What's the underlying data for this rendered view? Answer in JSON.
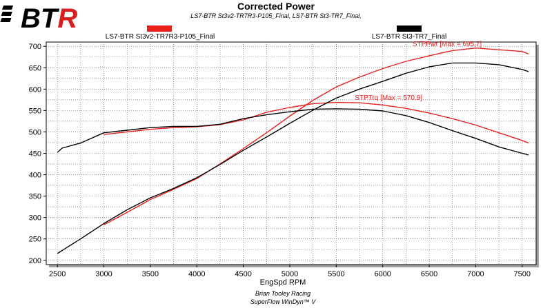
{
  "logo": {
    "text": "BTR",
    "accent": "#d81e1e"
  },
  "chart_data": {
    "type": "line",
    "title": "Corrected Power",
    "subtitle": "LS7-BTR St3v2-TR7R3-P105_Final, LS7-BTR St3-TR7_Final,",
    "xlabel": "EngSpd RPM",
    "ylabel": "",
    "xlim": [
      2380,
      7650
    ],
    "ylim": [
      190,
      710
    ],
    "xticks": [
      2500,
      3000,
      3500,
      4000,
      4500,
      5000,
      5500,
      6000,
      6500,
      7000,
      7500
    ],
    "yticks": [
      200,
      250,
      300,
      350,
      400,
      450,
      500,
      550,
      600,
      650,
      700
    ],
    "grid": true,
    "legend_position": "top",
    "legend": [
      {
        "name": "LS7-BTR St3v2-TR7R3-P105_Final",
        "color": "#e8201c"
      },
      {
        "name": "LS7-BTR St3-TR7_Final",
        "color": "#000000"
      }
    ],
    "series": [
      {
        "name": "LS7-BTR St3v2-TR7R3-P105_Final",
        "metric": "STPPwr",
        "color": "#e8201c",
        "x": [
          3000,
          3250,
          3500,
          3750,
          4000,
          4250,
          4500,
          4750,
          5000,
          5250,
          5500,
          5750,
          6000,
          6250,
          6500,
          6750,
          7000,
          7250,
          7500,
          7570
        ],
        "y": [
          283,
          312,
          342,
          366,
          391,
          425,
          461,
          498,
          537,
          574,
          605,
          628,
          648,
          665,
          678,
          690,
          696,
          692,
          688,
          682
        ]
      },
      {
        "name": "LS7-BTR St3v2-TR7R3-P105_Final",
        "metric": "STPTrq",
        "color": "#e8201c",
        "x": [
          3000,
          3250,
          3500,
          3750,
          4000,
          4250,
          4500,
          4750,
          5000,
          5250,
          5500,
          5750,
          6000,
          6250,
          6500,
          6750,
          7000,
          7250,
          7500,
          7570
        ],
        "y": [
          494,
          500,
          506,
          510,
          512,
          517,
          528,
          546,
          557,
          566,
          569,
          568,
          563,
          555,
          544,
          531,
          516,
          498,
          480,
          474
        ]
      },
      {
        "name": "LS7-BTR St3-TR7_Final",
        "metric": "STPPwr",
        "color": "#000000",
        "x": [
          2500,
          2750,
          3000,
          3250,
          3500,
          3750,
          4000,
          4250,
          4500,
          4750,
          5000,
          5250,
          5500,
          5750,
          6000,
          6250,
          6500,
          6750,
          7000,
          7250,
          7500,
          7570
        ],
        "y": [
          216,
          250,
          286,
          318,
          346,
          368,
          393,
          424,
          457,
          488,
          520,
          551,
          579,
          600,
          618,
          637,
          652,
          661,
          661,
          657,
          646,
          641
        ]
      },
      {
        "name": "LS7-BTR St3-TR7_Final",
        "metric": "STPTrq",
        "color": "#000000",
        "x": [
          2500,
          2550,
          2750,
          3000,
          3250,
          3500,
          3750,
          4000,
          4250,
          4500,
          4750,
          5000,
          5250,
          5500,
          5750,
          6000,
          6250,
          6500,
          6750,
          7000,
          7250,
          7500,
          7570
        ],
        "y": [
          452,
          462,
          474,
          498,
          504,
          510,
          513,
          513,
          518,
          531,
          540,
          547,
          553,
          554,
          553,
          549,
          538,
          522,
          503,
          485,
          465,
          450,
          446
        ]
      }
    ],
    "annotations": [
      {
        "text": "STPPwr [Max = 695.7]",
        "color": "#e8201c",
        "x": 6320,
        "y": 700
      },
      {
        "text": "STPTrq [Max = 570.9]",
        "color": "#e8201c",
        "x": 5700,
        "y": 575
      }
    ]
  },
  "footer": {
    "line1": "Brian Tooley Racing",
    "line2": "SuperFlow WinDyn™ V"
  }
}
